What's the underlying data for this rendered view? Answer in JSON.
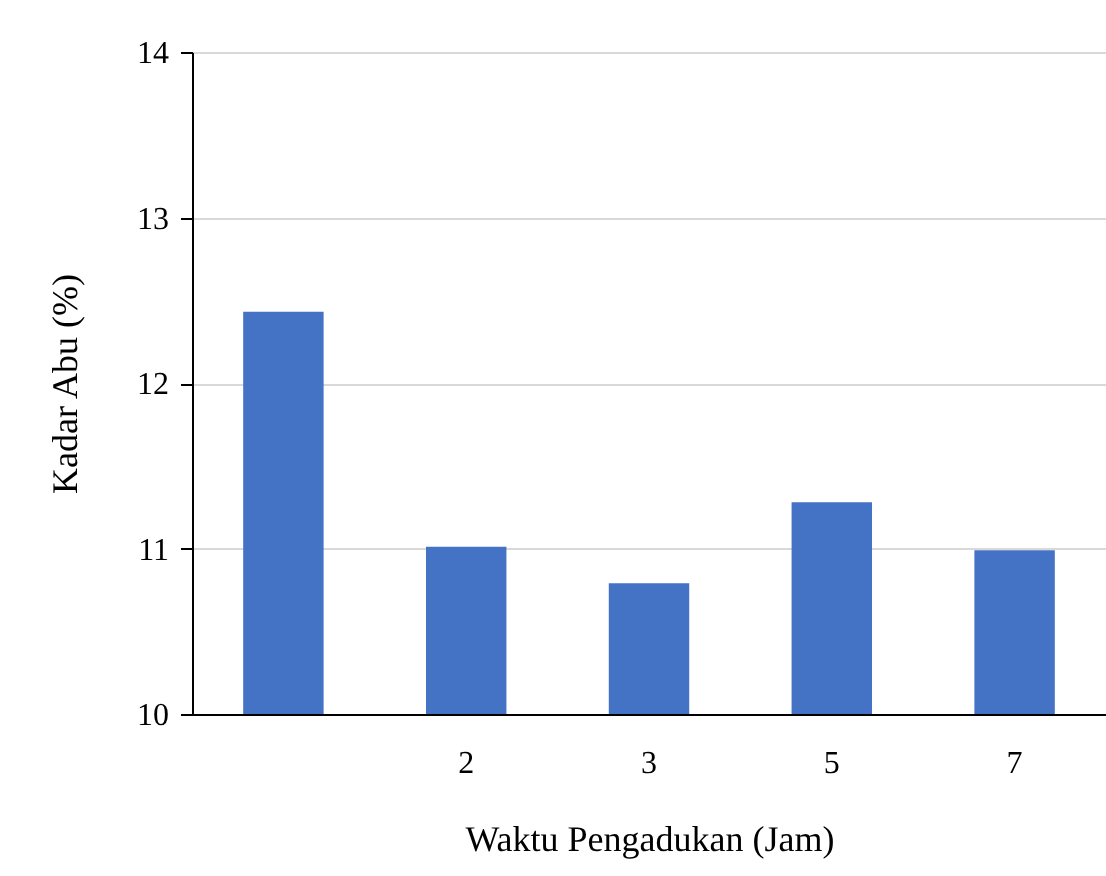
{
  "chart_data": {
    "type": "bar",
    "xlabel": "Waktu Pengadukan (Jam)",
    "ylabel": "Kadar Abu (%)",
    "categories": [
      null,
      "2",
      "3",
      "5",
      "7"
    ],
    "values": [
      12.43,
      11.01,
      10.79,
      11.28,
      10.99
    ],
    "color": "#4472c4",
    "ylim": [
      10,
      14
    ],
    "yticks": [
      10,
      11,
      12,
      13,
      14
    ],
    "grid": "y"
  }
}
